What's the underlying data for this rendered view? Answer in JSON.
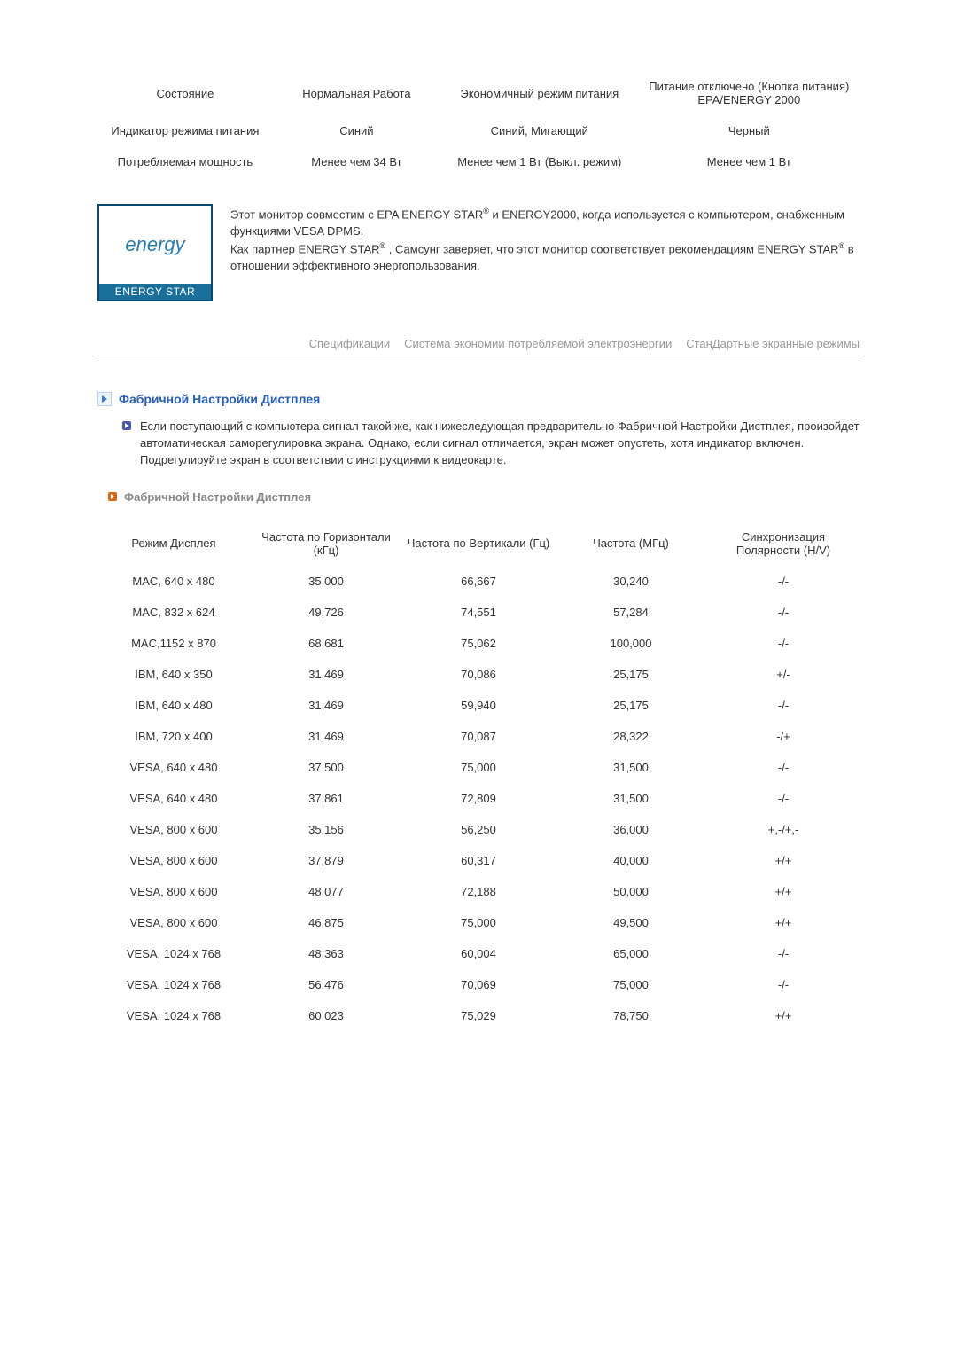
{
  "power_table": {
    "cols": [
      "col0",
      "col1",
      "col2",
      "col3"
    ],
    "header": [
      "Состояние",
      "Нормальная Работа",
      "Экономичный режим питания",
      "Питание отключено (Кнопка питания) EPA/ENERGY 2000"
    ],
    "rows": [
      [
        "Индикатор режима питания",
        "Синий",
        "Синий, Мигающий",
        "Черный"
      ],
      [
        "Потребляемая мощность",
        "Менее чем 34 Вт",
        "Менее чем 1 Вт (Выкл. режим)",
        "Менее чем 1 Вт"
      ]
    ]
  },
  "energy_star": {
    "logo_script": "energy",
    "logo_label": "ENERGY STAR",
    "text_html": "Этот монитор совместим с EPA ENERGY STAR<sup>®</sup> и ENERGY2000, когда используется с компьютером, снабженным функциями VESA DPMS.<br>Как партнер ENERGY STAR<sup>®</sup> , Самсунг заверяет, что этот монитор соответствует рекомендациям ENERGY STAR<sup>®</sup> в отношении эффективного энергопользования."
  },
  "tabs": [
    "Спецификации",
    "Система экономии потребляемой электроэнергии",
    "СтанДартные экранные режимы"
  ],
  "heading": "Фабричной Настройки Дистплея",
  "paragraph": "Если поступающий с компьютера сигнал такой же, как нижеследующая предварительно Фабричной Настройки Дистплея, произойдет автоматическая саморегулировка экрана. Однако, если сигнал отличается, экран может опустеть, хотя индикатор включен. Подрегулируйте экран в соответствии с инструкциями к видеокарте.",
  "sub_heading": "Фабричной Настройки Дистплея",
  "timing_table": {
    "header": [
      "Режим Дисплея",
      "Частота по Горизонтали (кГц)",
      "Частота по Вертикали (Гц)",
      "Частота (МГц)",
      "Синхронизация Полярности (H/V)"
    ],
    "rows": [
      [
        "MAC, 640 x 480",
        "35,000",
        "66,667",
        "30,240",
        "-/-"
      ],
      [
        "MAC, 832 x 624",
        "49,726",
        "74,551",
        "57,284",
        "-/-"
      ],
      [
        "MAC,1152 x 870",
        "68,681",
        "75,062",
        "100,000",
        "-/-"
      ],
      [
        "IBM, 640 x 350",
        "31,469",
        "70,086",
        "25,175",
        "+/-"
      ],
      [
        "IBM, 640 x 480",
        "31,469",
        "59,940",
        "25,175",
        "-/-"
      ],
      [
        "IBM, 720 x 400",
        "31,469",
        "70,087",
        "28,322",
        "-/+"
      ],
      [
        "VESA, 640 x 480",
        "37,500",
        "75,000",
        "31,500",
        "-/-"
      ],
      [
        "VESA, 640 x 480",
        "37,861",
        "72,809",
        "31,500",
        "-/-"
      ],
      [
        "VESA, 800 x 600",
        "35,156",
        "56,250",
        "36,000",
        "+,-/+,-"
      ],
      [
        "VESA, 800 x 600",
        "37,879",
        "60,317",
        "40,000",
        "+/+"
      ],
      [
        "VESA, 800 x 600",
        "48,077",
        "72,188",
        "50,000",
        "+/+"
      ],
      [
        "VESA, 800 x 600",
        "46,875",
        "75,000",
        "49,500",
        "+/+"
      ],
      [
        "VESA, 1024 x 768",
        "48,363",
        "60,004",
        "65,000",
        "-/-"
      ],
      [
        "VESA, 1024 x 768",
        "56,476",
        "70,069",
        "75,000",
        "-/-"
      ],
      [
        "VESA, 1024 x 768",
        "60,023",
        "75,029",
        "78,750",
        "+/+"
      ]
    ]
  },
  "colors": {
    "heading": "#2b5fb5",
    "muted": "#999999",
    "bullet_blue": "#4b5aa8",
    "bullet_orange": "#d66a1a"
  }
}
